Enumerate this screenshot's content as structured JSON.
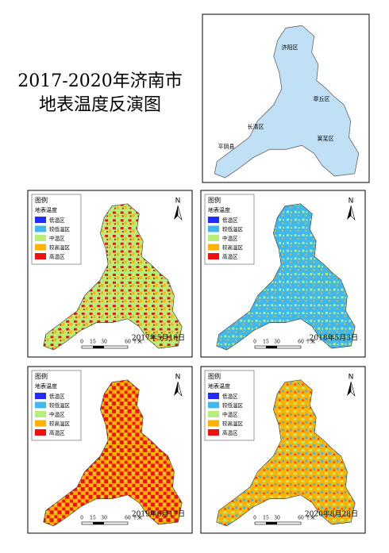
{
  "title": [
    "2017-2020年济南市",
    "地表温度反演图"
  ],
  "overview_map": {
    "labels": [
      "济阳区",
      "章丘区",
      "长清区",
      "莱芜区",
      "平阴县"
    ]
  },
  "legend": {
    "title": "图例",
    "subtitle": "地表温度",
    "classes": [
      {
        "label": "低温区",
        "color": "#1f2bff"
      },
      {
        "label": "较低温区",
        "color": "#3fb8f0"
      },
      {
        "label": "中温区",
        "color": "#b5ef7a"
      },
      {
        "label": "较高温区",
        "color": "#ffb300"
      },
      {
        "label": "高温区",
        "color": "#f01010"
      }
    ]
  },
  "north": "N",
  "scale_bar": {
    "ticks": [
      "0",
      "15",
      "30",
      "60"
    ],
    "unit": "千米"
  },
  "panels": [
    {
      "date": "2017年5月16日"
    },
    {
      "date": "2018年5月3日"
    },
    {
      "date": "2019年6月17日"
    },
    {
      "date": "2020年8月28日"
    }
  ]
}
